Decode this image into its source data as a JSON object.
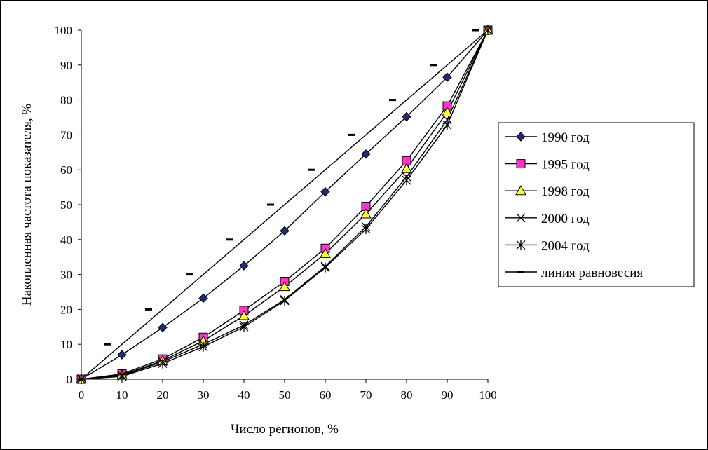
{
  "chart_data": {
    "type": "line",
    "title": "",
    "xlabel": "Число регионов, %",
    "ylabel": "Накопленная частота показателя, %",
    "xlim": [
      0,
      100
    ],
    "ylim": [
      0,
      100
    ],
    "x_ticks": [
      0,
      10,
      20,
      30,
      40,
      50,
      60,
      70,
      80,
      90,
      100
    ],
    "y_ticks": [
      0,
      10,
      20,
      30,
      40,
      50,
      60,
      70,
      80,
      90,
      100
    ],
    "x": [
      0,
      10,
      20,
      30,
      40,
      50,
      60,
      70,
      80,
      90,
      100
    ],
    "grid": false,
    "legend_position": "right",
    "series": [
      {
        "name": "1990 год",
        "marker": "diamond",
        "marker_fill": "#1f2a7a",
        "values": [
          0,
          7,
          14.8,
          23.2,
          32.5,
          42.5,
          53.7,
          64.5,
          75.2,
          86.5,
          100
        ]
      },
      {
        "name": "1995 год",
        "marker": "square",
        "marker_fill": "#ff33cc",
        "values": [
          0,
          1.5,
          5.8,
          12,
          19.7,
          28,
          37.5,
          49.5,
          62.6,
          78.3,
          100
        ]
      },
      {
        "name": "1998 год",
        "marker": "triangle",
        "marker_fill": "#ffff33",
        "values": [
          0,
          1.2,
          5.3,
          11,
          18.2,
          26.5,
          36,
          47.3,
          60.3,
          76.5,
          100
        ]
      },
      {
        "name": "2000 год",
        "marker": "x",
        "marker_fill": "#000000",
        "values": [
          0,
          1,
          5,
          10,
          15.5,
          22.8,
          32.3,
          43.7,
          58,
          74.3,
          100
        ]
      },
      {
        "name": "2004 год",
        "marker": "star",
        "marker_fill": "#000000",
        "values": [
          0,
          0.8,
          4.5,
          9.3,
          15,
          22.5,
          32,
          43,
          57,
          72.8,
          100
        ]
      },
      {
        "name": "линия равновесия",
        "marker": "dash",
        "marker_fill": "#000000",
        "values": [
          0,
          10,
          20,
          30,
          40,
          50,
          60,
          70,
          80,
          90,
          100
        ]
      }
    ]
  }
}
